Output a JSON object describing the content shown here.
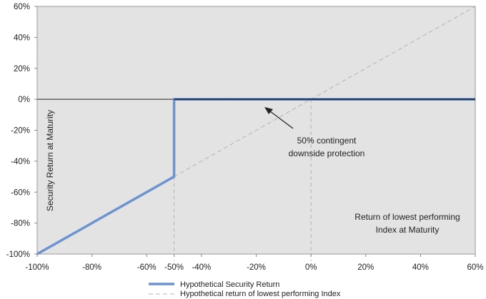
{
  "chart_data": {
    "type": "line",
    "xlim": [
      -100,
      60
    ],
    "ylim": [
      -100,
      60
    ],
    "x_ticks": [
      "-100%",
      "-80%",
      "-60%",
      "-50%",
      "-40%",
      "-20%",
      "0%",
      "20%",
      "40%",
      "60%"
    ],
    "y_ticks": [
      "60%",
      "40%",
      "20%",
      "0%",
      "-20%",
      "-40%",
      "-60%",
      "-80%",
      "-100%"
    ],
    "ylabel": "Security Return at Maturity",
    "xlabel_lines": [
      "Return of lowest performing",
      "Index at Maturity"
    ],
    "annotation_lines": [
      "50% contingent",
      "downside protection"
    ],
    "grid": false,
    "plot_background": "#e3e3e3",
    "series": [
      {
        "name": "Hypothetical Security Return",
        "color": "#6d93cf",
        "style": "solid",
        "points": [
          [
            -100,
            -100
          ],
          [
            -50,
            -50
          ],
          [
            -50,
            0
          ],
          [
            60,
            0
          ]
        ]
      },
      {
        "name": "Hypothetical return of lowest performing Index",
        "color": "#b3b3b3",
        "style": "dashed",
        "points": [
          [
            -100,
            -100
          ],
          [
            60,
            60
          ]
        ]
      }
    ],
    "zero_line_color": "#1f3864",
    "reference_vlines_x": [
      -50,
      0
    ],
    "legend_position": "bottom-center"
  }
}
